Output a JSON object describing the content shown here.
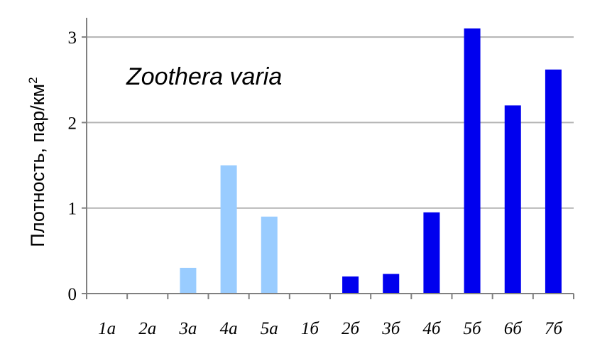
{
  "chart_data": {
    "type": "bar",
    "title": "",
    "annotation": "Zoothera varia",
    "xlabel": "",
    "ylabel": "Плотность, пар/км",
    "ylabel_superscript": "2",
    "ylim": [
      0,
      3.2
    ],
    "yticks": [
      "0",
      "1",
      "2",
      "3"
    ],
    "grid": true,
    "categories": [
      "1а",
      "2а",
      "3а",
      "4а",
      "5а",
      "1б",
      "2б",
      "3б",
      "4б",
      "5б",
      "6б",
      "7б"
    ],
    "values": [
      0,
      0,
      0.3,
      1.5,
      0.9,
      0,
      0.2,
      0.23,
      0.95,
      3.1,
      2.2,
      2.62
    ],
    "colors": [
      "#99ccff",
      "#99ccff",
      "#99ccff",
      "#99ccff",
      "#99ccff",
      "#0000ee",
      "#0000ee",
      "#0000ee",
      "#0000ee",
      "#0000ee",
      "#0000ee",
      "#0000ee"
    ]
  },
  "style": {
    "grid_color": "#b3b3b3",
    "axis_color": "#808080"
  }
}
